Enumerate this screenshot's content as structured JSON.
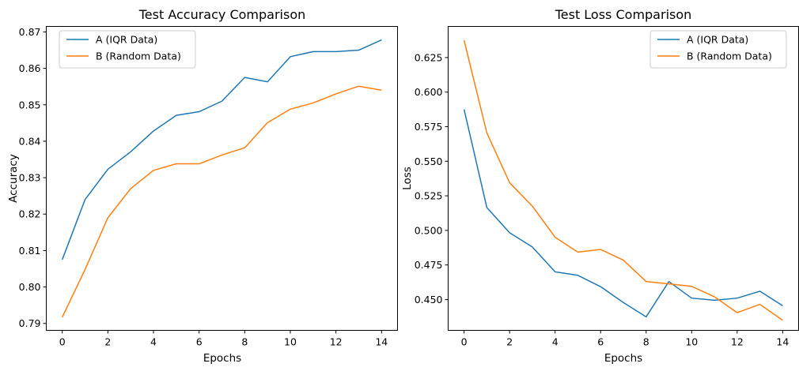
{
  "chart_data": [
    {
      "type": "line",
      "title": "Test Accuracy Comparison",
      "xlabel": "Epochs",
      "ylabel": "Accuracy",
      "xlim": [
        -0.7,
        14.7
      ],
      "ylim": [
        0.7881,
        0.8715
      ],
      "xticks": [
        0,
        2,
        4,
        6,
        8,
        10,
        12,
        14
      ],
      "xtick_labels": [
        "0",
        "2",
        "4",
        "6",
        "8",
        "10",
        "12",
        "14"
      ],
      "yticks": [
        0.79,
        0.8,
        0.81,
        0.82,
        0.83,
        0.84,
        0.85,
        0.86,
        0.87
      ],
      "ytick_labels": [
        "0.79",
        "0.80",
        "0.81",
        "0.82",
        "0.83",
        "0.84",
        "0.85",
        "0.86",
        "0.87"
      ],
      "legend_position": "top-left",
      "grid": false,
      "x": [
        0,
        1,
        2,
        3,
        4,
        5,
        6,
        7,
        8,
        9,
        10,
        11,
        12,
        13,
        14
      ],
      "series": [
        {
          "name": "A (IQR Data)",
          "color": "#1f77b4",
          "values": [
            0.8075,
            0.824,
            0.8323,
            0.8371,
            0.8428,
            0.8471,
            0.8481,
            0.851,
            0.8575,
            0.8563,
            0.8632,
            0.8646,
            0.8646,
            0.865,
            0.8678
          ]
        },
        {
          "name": "B (Random Data)",
          "color": "#ff7f0e",
          "values": [
            0.7917,
            0.8048,
            0.819,
            0.827,
            0.832,
            0.8338,
            0.8338,
            0.8362,
            0.8382,
            0.8451,
            0.8488,
            0.8505,
            0.853,
            0.8551,
            0.854
          ]
        }
      ]
    },
    {
      "type": "line",
      "title": "Test Loss Comparison",
      "xlabel": "Epochs",
      "ylabel": "Loss",
      "xlim": [
        -0.7,
        14.7
      ],
      "ylim": [
        0.4277,
        0.6475
      ],
      "xticks": [
        0,
        2,
        4,
        6,
        8,
        10,
        12,
        14
      ],
      "xtick_labels": [
        "0",
        "2",
        "4",
        "6",
        "8",
        "10",
        "12",
        "14"
      ],
      "yticks": [
        0.45,
        0.475,
        0.5,
        0.525,
        0.55,
        0.575,
        0.6,
        0.625
      ],
      "ytick_labels": [
        "0.450",
        "0.475",
        "0.500",
        "0.525",
        "0.550",
        "0.575",
        "0.600",
        "0.625"
      ],
      "legend_position": "top-right",
      "grid": false,
      "x": [
        0,
        1,
        2,
        3,
        4,
        5,
        6,
        7,
        8,
        9,
        10,
        11,
        12,
        13,
        14
      ],
      "series": [
        {
          "name": "A (IQR Data)",
          "color": "#1f77b4",
          "values": [
            0.5875,
            0.5165,
            0.4983,
            0.488,
            0.47,
            0.4675,
            0.4593,
            0.4478,
            0.4375,
            0.463,
            0.451,
            0.4495,
            0.451,
            0.456,
            0.4455
          ]
        },
        {
          "name": "B (Random Data)",
          "color": "#ff7f0e",
          "values": [
            0.6375,
            0.5705,
            0.5345,
            0.5175,
            0.495,
            0.4843,
            0.4862,
            0.4785,
            0.463,
            0.4613,
            0.4595,
            0.452,
            0.4405,
            0.4465,
            0.435
          ]
        }
      ]
    }
  ]
}
